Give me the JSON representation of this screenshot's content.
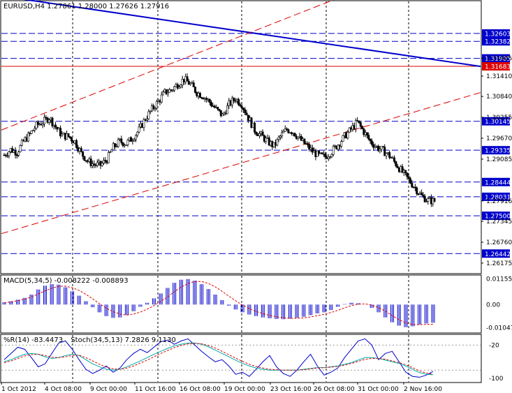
{
  "chart_data": [
    {
      "type": "candlestick",
      "title": "EURUSD,H4",
      "ohlc_label": "1.27861 1.28000 1.27626 1.27916",
      "ylim": [
        1.259,
        1.335
      ],
      "y_ticks": [
        "1.31410",
        "1.30840",
        "1.30255",
        "1.29670",
        "1.29085",
        "1.27916",
        "1.27345",
        "1.26760",
        "1.26175",
        "1.31905"
      ],
      "price_tags": [
        {
          "label": "1.32603",
          "value": 1.32603,
          "color": "#0000cc",
          "line": "dash"
        },
        {
          "label": "1.32382",
          "value": 1.32382,
          "color": "#0000cc",
          "line": "dash"
        },
        {
          "label": "1.31905",
          "value": 1.31905,
          "color": "#0000cc",
          "line": "dash"
        },
        {
          "label": "1.31683",
          "value": 1.31683,
          "color": "#dd0000",
          "line": "solid"
        },
        {
          "label": "1.30145",
          "value": 1.30145,
          "color": "#0000cc",
          "line": "dash"
        },
        {
          "label": "1.29335",
          "value": 1.29335,
          "color": "#0000cc",
          "line": "dash"
        },
        {
          "label": "1.28444",
          "value": 1.28444,
          "color": "#0000cc",
          "line": "dash"
        },
        {
          "label": "1.28031",
          "value": 1.28031,
          "color": "#0000cc",
          "line": "dash"
        },
        {
          "label": "1.27500",
          "value": 1.275,
          "color": "#0000cc",
          "line": "dash"
        },
        {
          "label": "1.26442",
          "value": 1.26442,
          "color": "#0000cc",
          "line": "dash"
        }
      ],
      "close_path": [
        1.292,
        1.2935,
        1.2928,
        1.2958,
        1.2978,
        1.3003,
        1.3012,
        1.3025,
        1.2999,
        1.2975,
        1.2972,
        1.2958,
        1.2925,
        1.2903,
        1.2893,
        1.2892,
        1.2908,
        1.2942,
        1.2958,
        1.2952,
        1.2968,
        1.299,
        1.3022,
        1.3048,
        1.307,
        1.3095,
        1.3102,
        1.3118,
        1.3132,
        1.3118,
        1.3095,
        1.3085,
        1.3068,
        1.3048,
        1.303,
        1.3062,
        1.3078,
        1.3062,
        1.3025,
        1.299,
        1.2975,
        1.2958,
        1.2945,
        1.2972,
        1.2992,
        1.2985,
        1.2965,
        1.2948,
        1.293,
        1.2918,
        1.2915,
        1.293,
        1.295,
        1.2972,
        1.2992,
        1.3012,
        1.2985,
        1.2958,
        1.2942,
        1.2932,
        1.2918,
        1.2895,
        1.2872,
        1.285,
        1.2828,
        1.2805,
        1.2793,
        1.2791
      ],
      "trendlines": [
        {
          "color": "#0000cc",
          "style": "solid",
          "from": [
            0.0,
            1.3365
          ],
          "to": [
            1.0,
            1.3168
          ]
        },
        {
          "color": "#dd0000",
          "style": "dash",
          "from": [
            0.0,
            1.299
          ],
          "to": [
            0.78,
            1.34
          ]
        },
        {
          "color": "#dd0000",
          "style": "dash",
          "from": [
            0.0,
            1.27
          ],
          "to": [
            1.0,
            1.3095
          ]
        }
      ]
    },
    {
      "type": "histogram",
      "title": "MACD(5,34,5) -0.008222 -0.008893",
      "y_ticks": [
        "0.01155",
        "0.00",
        "-0.01047"
      ],
      "ylim": [
        -0.0125,
        0.013
      ],
      "values": [
        0.001,
        0.0015,
        0.0022,
        0.003,
        0.0045,
        0.0068,
        0.0085,
        0.0092,
        0.009,
        0.0078,
        0.006,
        0.004,
        0.0015,
        -0.0012,
        -0.0035,
        -0.0052,
        -0.006,
        -0.0058,
        -0.0048,
        -0.003,
        -0.001,
        0.0008,
        0.0028,
        0.005,
        0.0075,
        0.0098,
        0.0112,
        0.0115,
        0.0108,
        0.0092,
        0.007,
        0.0045,
        0.002,
        -0.0005,
        -0.0022,
        -0.0035,
        -0.0045,
        -0.0052,
        -0.0058,
        -0.0062,
        -0.0065,
        -0.0066,
        -0.0064,
        -0.006,
        -0.0055,
        -0.0048,
        -0.004,
        -0.0035,
        -0.0025,
        -0.001,
        0.0002,
        0.0008,
        0.0006,
        0.0,
        -0.0015,
        -0.0035,
        -0.0058,
        -0.008,
        -0.0095,
        -0.0102,
        -0.0098,
        -0.009,
        -0.0085,
        -0.0082
      ],
      "signal": [
        0.0008,
        0.0012,
        0.0017,
        0.0024,
        0.0034,
        0.0048,
        0.0062,
        0.0074,
        0.0082,
        0.0083,
        0.0076,
        0.0064,
        0.0046,
        0.0026,
        0.0004,
        -0.0016,
        -0.0032,
        -0.0043,
        -0.0047,
        -0.0043,
        -0.0034,
        -0.0021,
        -0.0005,
        0.0014,
        0.0035,
        0.0058,
        0.0079,
        0.0095,
        0.0104,
        0.0104,
        0.0095,
        0.008,
        0.006,
        0.0038,
        0.0017,
        -0.0002,
        -0.0018,
        -0.0031,
        -0.0041,
        -0.0049,
        -0.0055,
        -0.006,
        -0.0062,
        -0.0062,
        -0.006,
        -0.0056,
        -0.005,
        -0.0044,
        -0.0036,
        -0.0026,
        -0.0015,
        -0.0005,
        0.0002,
        0.0003,
        -0.0002,
        -0.0014,
        -0.003,
        -0.005,
        -0.0068,
        -0.0083,
        -0.009,
        -0.0091,
        -0.0089,
        -0.0089
      ]
    },
    {
      "type": "line",
      "title": "%R(14) -83.4473",
      "title2": "Stoch(34,5,13) 7.2826 9.1130",
      "y_ticks": [
        "-100",
        "-20"
      ],
      "ylim": [
        -108,
        4
      ],
      "series": [
        {
          "color": "#0000cc",
          "values": [
            -55,
            -40,
            -25,
            -30,
            -50,
            -72,
            -65,
            -40,
            -15,
            -10,
            -30,
            -55,
            -78,
            -88,
            -80,
            -70,
            -85,
            -75,
            -55,
            -40,
            -30,
            -38,
            -25,
            -12,
            -8,
            -18,
            -10,
            -5,
            -20,
            -35,
            -48,
            -60,
            -55,
            -70,
            -90,
            -85,
            -95,
            -78,
            -60,
            -45,
            -72,
            -88,
            -95,
            -80,
            -60,
            -42,
            -70,
            -92,
            -85,
            -75,
            -50,
            -30,
            -10,
            -5,
            -20,
            -55,
            -40,
            -35,
            -60,
            -85,
            -95,
            -97,
            -92,
            -83
          ]
        },
        {
          "color": "#00aaaa",
          "values": [
            -60,
            -55,
            -48,
            -42,
            -40,
            -42,
            -48,
            -52,
            -50,
            -45,
            -42,
            -45,
            -55,
            -65,
            -72,
            -78,
            -80,
            -78,
            -72,
            -65,
            -58,
            -50,
            -42,
            -35,
            -28,
            -22,
            -18,
            -15,
            -15,
            -18,
            -24,
            -32,
            -40,
            -48,
            -56,
            -64,
            -70,
            -75,
            -78,
            -80,
            -80,
            -80,
            -80,
            -80,
            -78,
            -76,
            -74,
            -74,
            -72,
            -70,
            -66,
            -62,
            -56,
            -50,
            -50,
            -52,
            -56,
            -60,
            -64,
            -70,
            -78,
            -86,
            -90,
            -91
          ]
        },
        {
          "color": "#dd0000",
          "values": [
            -62,
            -58,
            -52,
            -46,
            -43,
            -42,
            -45,
            -49,
            -50,
            -48,
            -45,
            -44,
            -50,
            -58,
            -66,
            -73,
            -77,
            -78,
            -75,
            -70,
            -63,
            -56,
            -48,
            -40,
            -33,
            -26,
            -21,
            -17,
            -16,
            -17,
            -21,
            -27,
            -35,
            -43,
            -51,
            -59,
            -66,
            -71,
            -75,
            -78,
            -79,
            -80,
            -80,
            -80,
            -79,
            -77,
            -75,
            -74,
            -73,
            -71,
            -68,
            -64,
            -59,
            -54,
            -52,
            -52,
            -54,
            -58,
            -62,
            -67,
            -74,
            -82,
            -87,
            -90
          ]
        }
      ]
    }
  ],
  "x_labels": [
    "1 Oct 2012",
    "4 Oct 08:00",
    "9 Oct 00:00",
    "11 Oct 16:00",
    "16 Oct 08:00",
    "19 Oct 00:00",
    "23 Oct 16:00",
    "26 Oct 08:00",
    "31 Oct 00:00",
    "2 Nov 16:00"
  ],
  "colors": {
    "bull_body": "#ffffff",
    "bear_body": "#000000",
    "candle": "#000000",
    "grid": "#000000",
    "macd": "#0000cc",
    "signal": "#dd0000"
  }
}
